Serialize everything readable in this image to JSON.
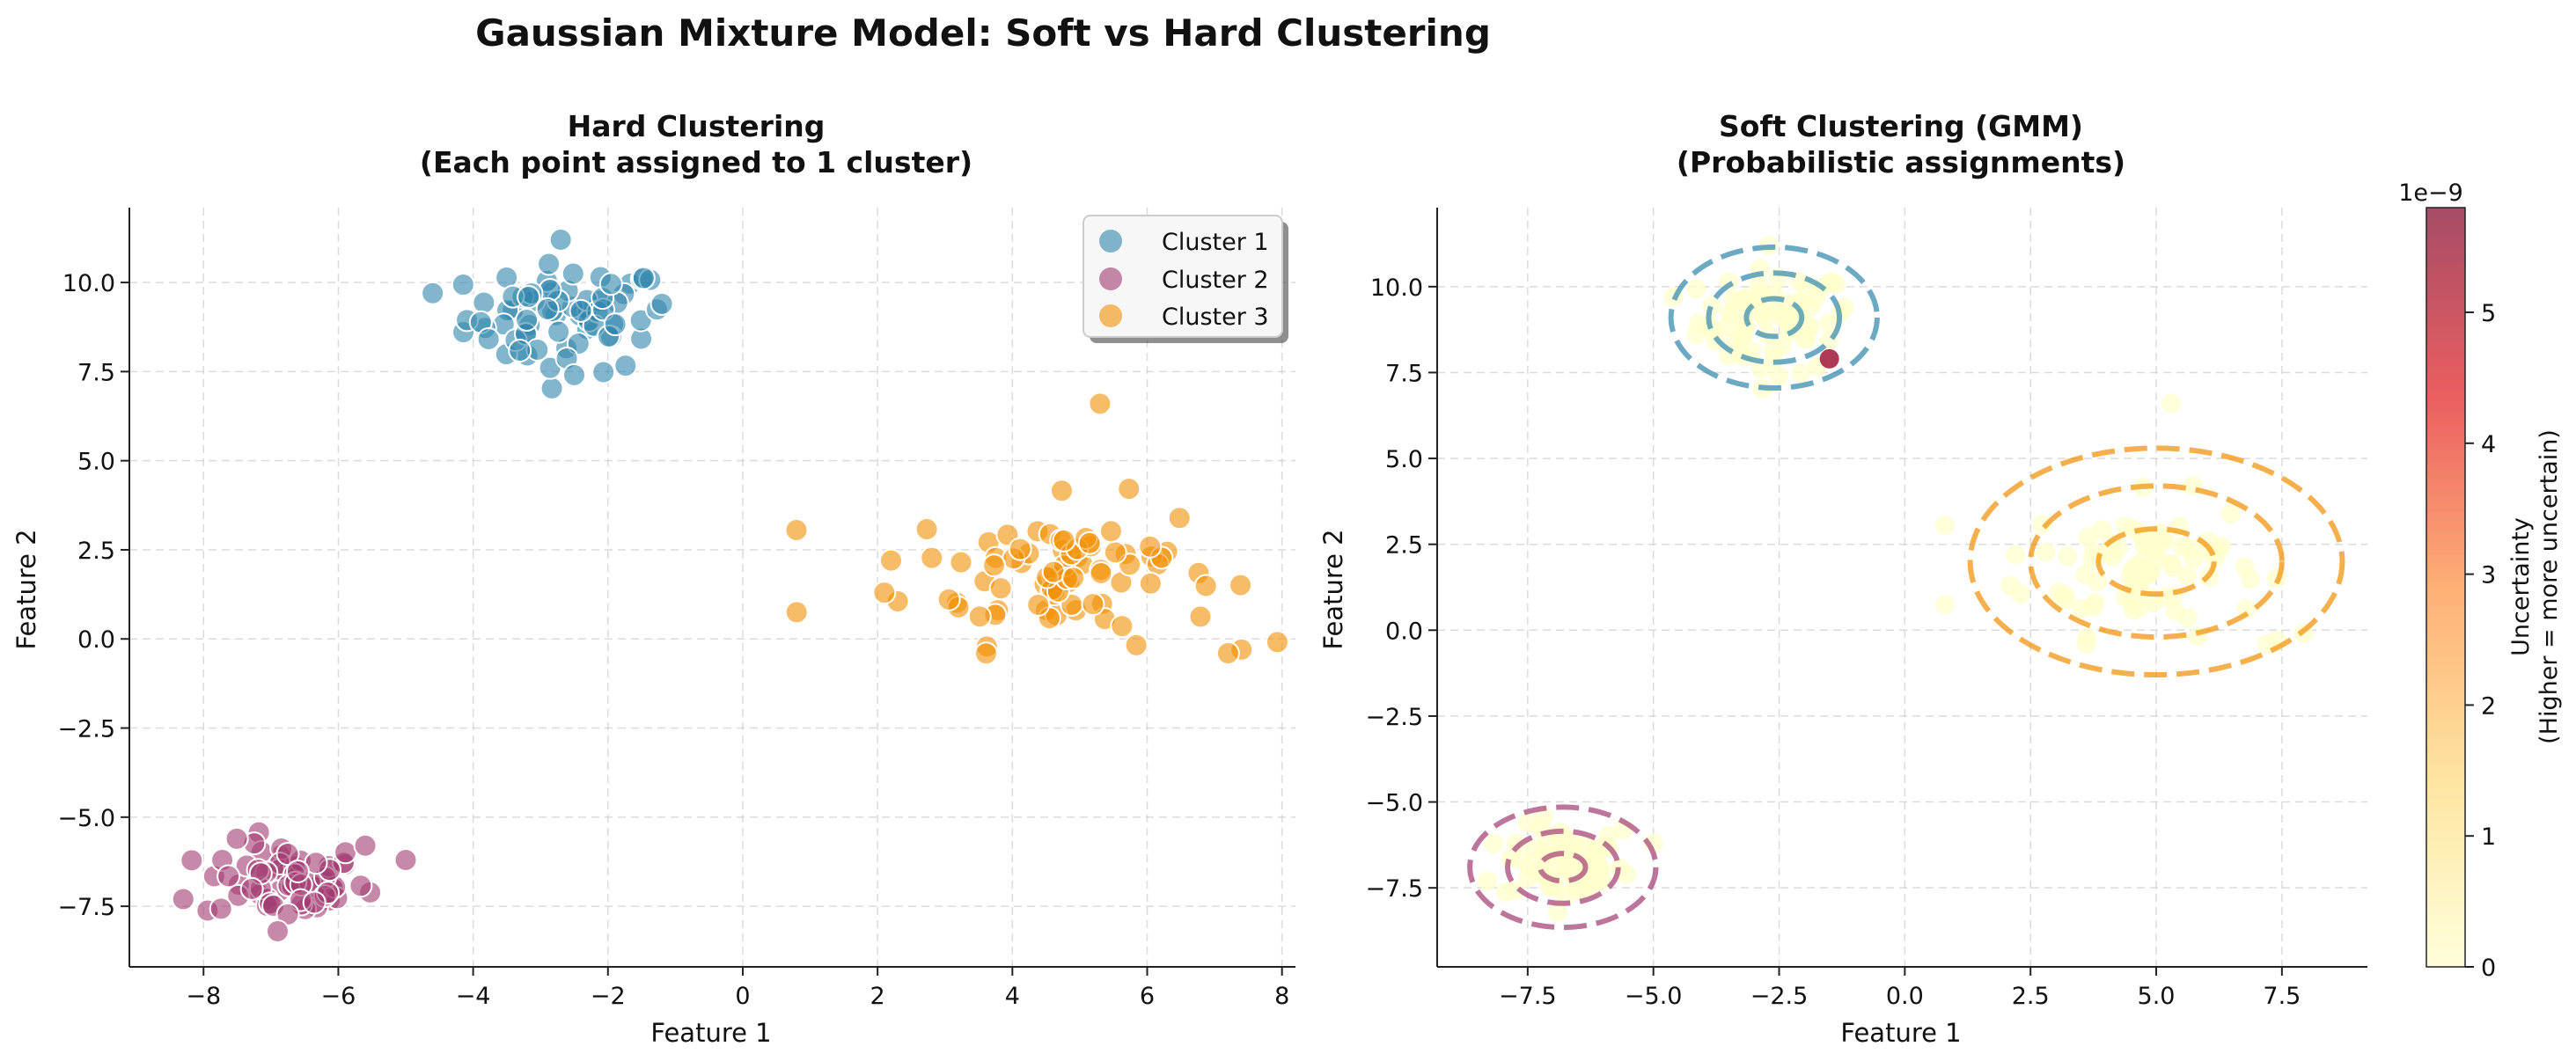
{
  "figure": {
    "suptitle": "Gaussian Mixture Model: Soft vs Hard Clustering"
  },
  "chart_data": [
    {
      "type": "scatter",
      "title": "Hard Clustering\n(Each point assigned to 1 cluster)",
      "xlabel": "Feature 1",
      "ylabel": "Feature 2",
      "xlim": [
        -9.1,
        8.2
      ],
      "ylim": [
        -9.2,
        12.1
      ],
      "xticks": [
        -8,
        -6,
        -4,
        -2,
        0,
        2,
        4,
        6,
        8
      ],
      "yticks": [
        -7.5,
        -5.0,
        -2.5,
        0.0,
        2.5,
        5.0,
        7.5,
        10.0
      ],
      "ytick_labels": [
        "−7.5",
        "−5.0",
        "−2.5",
        "0.0",
        "2.5",
        "5.0",
        "7.5",
        "10.0"
      ],
      "xtick_labels": [
        "−8",
        "−6",
        "−4",
        "−2",
        "0",
        "2",
        "4",
        "6",
        "8"
      ],
      "grid": true,
      "legend_position": "top-right",
      "series": [
        {
          "name": "Cluster 1",
          "color": "#2E86AB",
          "center": [
            -2.6,
            9.0
          ],
          "spread": [
            0.75,
            0.75
          ],
          "n": 70,
          "outliers": [
            [
              -4.6,
              9.7
            ],
            [
              -2.7,
              11.2
            ],
            [
              -1.2,
              9.4
            ],
            [
              -2.5,
              7.4
            ]
          ]
        },
        {
          "name": "Cluster 2",
          "color": "#A23B72",
          "center": [
            -6.8,
            -6.8
          ],
          "spread": [
            0.6,
            0.55
          ],
          "n": 65,
          "outliers": [
            [
              -5.0,
              -6.2
            ],
            [
              -8.3,
              -7.3
            ],
            [
              -6.9,
              -8.2
            ],
            [
              -5.6,
              -5.8
            ]
          ]
        },
        {
          "name": "Cluster 3",
          "color": "#F18F01",
          "center": [
            4.8,
            1.9
          ],
          "spread": [
            1.15,
            1.0
          ],
          "n": 80,
          "outliers": [
            [
              0.8,
              0.75
            ],
            [
              5.3,
              6.6
            ],
            [
              7.4,
              -0.3
            ],
            [
              7.2,
              -0.4
            ],
            [
              2.1,
              1.3
            ],
            [
              2.2,
              2.2
            ]
          ]
        }
      ]
    },
    {
      "type": "scatter",
      "title": "Soft Clustering (GMM)\n(Probabilistic assignments)",
      "xlabel": "Feature 1",
      "ylabel": "Feature 2",
      "xlim": [
        -9.3,
        9.2
      ],
      "ylim": [
        -9.8,
        12.3
      ],
      "xticks": [
        -7.5,
        -5.0,
        -2.5,
        0.0,
        2.5,
        5.0,
        7.5
      ],
      "xtick_labels": [
        "−7.5",
        "−5.0",
        "−2.5",
        "0.0",
        "2.5",
        "5.0",
        "7.5"
      ],
      "yticks": [
        -7.5,
        -5.0,
        -2.5,
        0.0,
        2.5,
        5.0,
        7.5,
        10.0
      ],
      "ytick_labels": [
        "−7.5",
        "−5.0",
        "−2.5",
        "0.0",
        "2.5",
        "5.0",
        "7.5",
        "10.0"
      ],
      "grid": true,
      "highlight_point": {
        "x": -1.5,
        "y": 7.9,
        "uncertainty": 5.6
      },
      "ellipses": [
        {
          "color": "#2E86AB",
          "center": [
            -2.6,
            9.1
          ],
          "radii": [
            [
              0.55,
              0.55
            ],
            [
              1.3,
              1.3
            ],
            [
              2.05,
              2.05
            ]
          ]
        },
        {
          "color": "#A23B72",
          "center": [
            -6.8,
            -6.9
          ],
          "radii": [
            [
              0.45,
              0.4
            ],
            [
              1.1,
              1.05
            ],
            [
              1.85,
              1.75
            ]
          ]
        },
        {
          "color": "#F18F01",
          "center": [
            5.0,
            2.0
          ],
          "radii": [
            [
              1.15,
              0.95
            ],
            [
              2.5,
              2.2
            ],
            [
              3.7,
              3.3
            ]
          ]
        }
      ],
      "colorbar": {
        "label_line1": "Uncertainty",
        "label_line2": "(Higher = more uncertain)",
        "scale_label": "1e−9",
        "ticks": [
          0,
          1,
          2,
          3,
          4,
          5
        ],
        "tick_labels": [
          "0",
          "1",
          "2",
          "3",
          "4",
          "5"
        ],
        "vmin": 0,
        "vmax": 5.8,
        "colormap": "YlOrRd"
      }
    }
  ]
}
